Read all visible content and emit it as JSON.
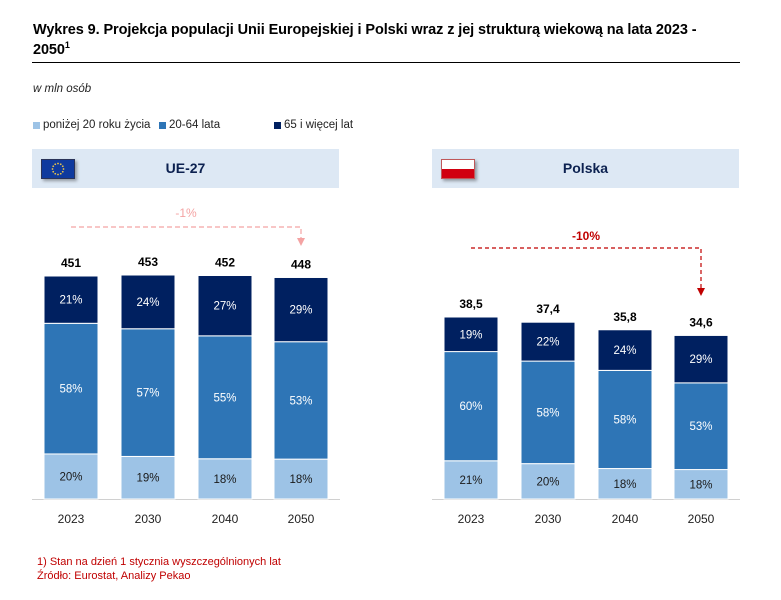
{
  "title": "Wykres 9. Projekcja populacji Unii Europejskiej i Polski wraz z jej strukturą wiekową na lata 2023 - 2050",
  "title_sup": "1",
  "unit_label": "w mln osób",
  "legend": [
    {
      "label": "poniżej 20 roku życia",
      "color": "#9dc3e6"
    },
    {
      "label": "20-64 lata",
      "color": "#2e75b6"
    },
    {
      "label": "65 i więcej lat",
      "color": "#002060"
    }
  ],
  "footnotes": {
    "note": "1) Stan na dzień 1 stycznia wyszczególnionych lat",
    "source": "Źródło: Eurostat, Analizy Pekao"
  },
  "colors": {
    "under20": "#9dc3e6",
    "age20_64": "#2e75b6",
    "age65plus": "#002060",
    "header_bg": "#dde8f4",
    "ue_change": "#f4a3a3",
    "pl_change": "#c00000"
  },
  "chart_data": [
    {
      "type": "bar",
      "stacked": true,
      "title": "UE-27",
      "flag": "eu-flag-icon",
      "categories": [
        "2023",
        "2030",
        "2040",
        "2050"
      ],
      "totals": [
        451,
        453,
        452,
        448
      ],
      "totals_labels": [
        "451",
        "453",
        "452",
        "448"
      ],
      "series": [
        {
          "name": "poniżej 20 roku życia",
          "values": [
            20,
            19,
            18,
            18
          ]
        },
        {
          "name": "20-64 lata",
          "values": [
            58,
            57,
            55,
            53
          ]
        },
        {
          "name": "65 i więcej lat",
          "values": [
            21,
            24,
            27,
            29
          ]
        }
      ],
      "value_unit": "%",
      "change_annotation": {
        "label": "-1%",
        "from": "2023",
        "to": "2050",
        "color": "#f4a3a3"
      },
      "ylabel": "w mln osób",
      "ylim": [
        0,
        451
      ],
      "grid": false
    },
    {
      "type": "bar",
      "stacked": true,
      "title": "Polska",
      "flag": "poland-flag-icon",
      "categories": [
        "2023",
        "2030",
        "2040",
        "2050"
      ],
      "totals": [
        38.5,
        37.4,
        35.8,
        34.6
      ],
      "totals_labels": [
        "38,5",
        "37,4",
        "35,8",
        "34,6"
      ],
      "series": [
        {
          "name": "poniżej 20 roku życia",
          "values": [
            21,
            20,
            18,
            18
          ]
        },
        {
          "name": "20-64 lata",
          "values": [
            60,
            58,
            58,
            53
          ]
        },
        {
          "name": "65 i więcej lat",
          "values": [
            19,
            22,
            24,
            29
          ]
        }
      ],
      "value_unit": "%",
      "change_annotation": {
        "label": "-10%",
        "from": "2023",
        "to": "2050",
        "color": "#c00000"
      },
      "ylabel": "w mln osób",
      "ylim": [
        0,
        38.5
      ],
      "grid": false
    }
  ]
}
